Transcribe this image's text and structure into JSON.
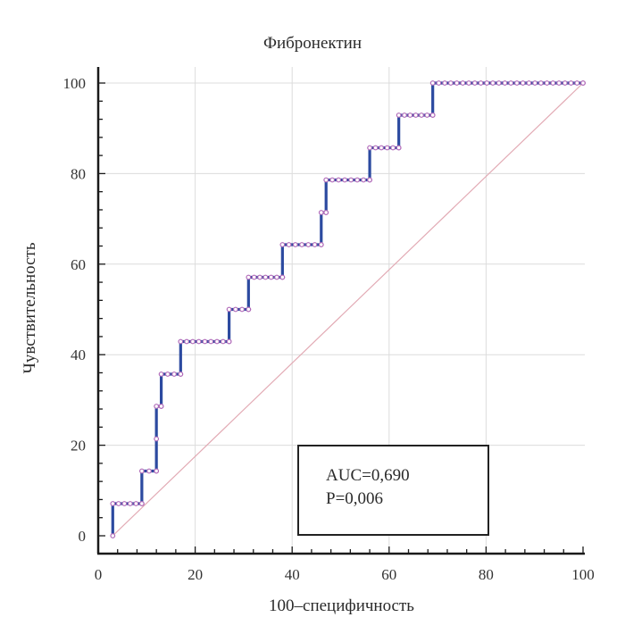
{
  "chart_data": {
    "type": "line",
    "title": "Фибронектин",
    "xlabel": "100–специфичность",
    "ylabel": "Чувствительность",
    "xlim": [
      0,
      100
    ],
    "ylim": [
      0,
      100
    ],
    "xticks": [
      "0",
      "20",
      "40",
      "60",
      "80",
      "100"
    ],
    "yticks": [
      "0",
      "20",
      "40",
      "60",
      "80",
      "100"
    ],
    "grid": true,
    "series": [
      {
        "kind": "roc",
        "color": "#2c4aa0",
        "marker_color": "#b069b8",
        "x": [
          3,
          3,
          9,
          9,
          12,
          12,
          12,
          13,
          13,
          17,
          17,
          27,
          27,
          31,
          31,
          38,
          38,
          46,
          46,
          47,
          47,
          56,
          56,
          62,
          62,
          69,
          69,
          100
        ],
        "y": [
          0,
          7.1,
          7.1,
          14.3,
          14.3,
          21.4,
          28.6,
          28.6,
          35.7,
          35.7,
          42.9,
          42.9,
          50,
          50,
          57.1,
          57.1,
          64.3,
          64.3,
          71.4,
          71.4,
          78.6,
          78.6,
          85.7,
          85.7,
          92.9,
          92.9,
          100,
          100
        ]
      },
      {
        "kind": "reference",
        "color": "#e2aab4",
        "x": [
          3,
          100
        ],
        "y": [
          0,
          100
        ]
      }
    ],
    "annotations": [
      "AUC=0,690",
      "P=0,006"
    ]
  }
}
